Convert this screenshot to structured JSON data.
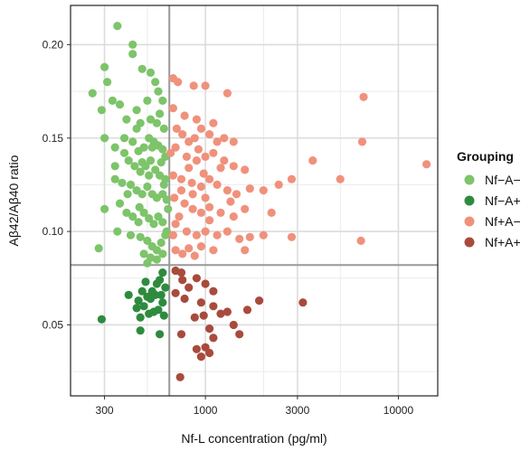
{
  "chart_data": {
    "type": "scatter",
    "xlabel": "Nf-L concentration (pg/ml)",
    "ylabel": "Aβ42/Aβ40 ratio",
    "x_scale": "log",
    "xlim": [
      200,
      16000
    ],
    "ylim": [
      0.012,
      0.221
    ],
    "x_ticks": [
      300,
      1000,
      3000,
      10000
    ],
    "x_tick_labels": [
      "300",
      "1000",
      "3000",
      "10000"
    ],
    "y_ticks": [
      0.05,
      0.1,
      0.15,
      0.2
    ],
    "y_tick_labels": [
      "0.05",
      "0.10",
      "0.15",
      "0.20"
    ],
    "grid": true,
    "reference_lines": {
      "x": 650,
      "y": 0.082
    },
    "legend": {
      "title": "Grouping",
      "position": "right"
    },
    "series": [
      {
        "name": "Nf−A−",
        "color": "#7dc46a",
        "points": [
          [
            350,
            0.21
          ],
          [
            420,
            0.2
          ],
          [
            420,
            0.195
          ],
          [
            300,
            0.188
          ],
          [
            310,
            0.18
          ],
          [
            260,
            0.174
          ],
          [
            330,
            0.17
          ],
          [
            360,
            0.168
          ],
          [
            290,
            0.165
          ],
          [
            470,
            0.187
          ],
          [
            520,
            0.185
          ],
          [
            550,
            0.18
          ],
          [
            570,
            0.175
          ],
          [
            600,
            0.17
          ],
          [
            580,
            0.163
          ],
          [
            500,
            0.17
          ],
          [
            440,
            0.165
          ],
          [
            390,
            0.16
          ],
          [
            460,
            0.158
          ],
          [
            520,
            0.16
          ],
          [
            560,
            0.158
          ],
          [
            610,
            0.155
          ],
          [
            300,
            0.15
          ],
          [
            340,
            0.145
          ],
          [
            380,
            0.15
          ],
          [
            420,
            0.148
          ],
          [
            450,
            0.143
          ],
          [
            480,
            0.145
          ],
          [
            510,
            0.15
          ],
          [
            540,
            0.148
          ],
          [
            570,
            0.146
          ],
          [
            600,
            0.144
          ],
          [
            620,
            0.14
          ],
          [
            400,
            0.138
          ],
          [
            430,
            0.135
          ],
          [
            460,
            0.132
          ],
          [
            490,
            0.135
          ],
          [
            520,
            0.138
          ],
          [
            550,
            0.133
          ],
          [
            580,
            0.13
          ],
          [
            620,
            0.128
          ],
          [
            340,
            0.128
          ],
          [
            370,
            0.126
          ],
          [
            410,
            0.125
          ],
          [
            440,
            0.122
          ],
          [
            470,
            0.12
          ],
          [
            500,
            0.124
          ],
          [
            530,
            0.12
          ],
          [
            560,
            0.118
          ],
          [
            600,
            0.12
          ],
          [
            630,
            0.117
          ],
          [
            300,
            0.112
          ],
          [
            360,
            0.115
          ],
          [
            390,
            0.11
          ],
          [
            420,
            0.108
          ],
          [
            450,
            0.105
          ],
          [
            480,
            0.11
          ],
          [
            510,
            0.107
          ],
          [
            540,
            0.104
          ],
          [
            570,
            0.108
          ],
          [
            600,
            0.105
          ],
          [
            630,
            0.1
          ],
          [
            280,
            0.091
          ],
          [
            350,
            0.1
          ],
          [
            410,
            0.098
          ],
          [
            460,
            0.097
          ],
          [
            500,
            0.095
          ],
          [
            530,
            0.092
          ],
          [
            560,
            0.09
          ],
          [
            590,
            0.094
          ],
          [
            620,
            0.098
          ],
          [
            480,
            0.088
          ],
          [
            520,
            0.086
          ],
          [
            560,
            0.085
          ],
          [
            500,
            0.083
          ],
          [
            600,
            0.088
          ],
          [
            340,
            0.135
          ],
          [
            380,
            0.142
          ],
          [
            440,
            0.155
          ],
          [
            530,
            0.145
          ],
          [
            470,
            0.137
          ],
          [
            510,
            0.13
          ],
          [
            590,
            0.137
          ],
          [
            610,
            0.125
          ],
          [
            640,
            0.112
          ],
          [
            455,
            0.113
          ],
          [
            395,
            0.12
          ]
        ]
      },
      {
        "name": "Nf−A+",
        "color": "#2e8b3e",
        "points": [
          [
            290,
            0.053
          ],
          [
            400,
            0.066
          ],
          [
            450,
            0.063
          ],
          [
            440,
            0.059
          ],
          [
            480,
            0.06
          ],
          [
            510,
            0.056
          ],
          [
            540,
            0.057
          ],
          [
            570,
            0.058
          ],
          [
            600,
            0.062
          ],
          [
            620,
            0.07
          ],
          [
            600,
            0.078
          ],
          [
            580,
            0.074
          ],
          [
            560,
            0.072
          ],
          [
            530,
            0.068
          ],
          [
            500,
            0.065
          ],
          [
            470,
            0.068
          ],
          [
            460,
            0.047
          ],
          [
            580,
            0.045
          ],
          [
            520,
            0.064
          ],
          [
            550,
            0.066
          ],
          [
            610,
            0.055
          ],
          [
            490,
            0.073
          ],
          [
            460,
            0.054
          ],
          [
            590,
            0.066
          ]
        ]
      },
      {
        "name": "Nf+A−",
        "color": "#f0917c",
        "points": [
          [
            680,
            0.182
          ],
          [
            720,
            0.18
          ],
          [
            870,
            0.178
          ],
          [
            1000,
            0.178
          ],
          [
            1300,
            0.174
          ],
          [
            680,
            0.166
          ],
          [
            780,
            0.162
          ],
          [
            900,
            0.16
          ],
          [
            1100,
            0.158
          ],
          [
            710,
            0.155
          ],
          [
            760,
            0.152
          ],
          [
            820,
            0.148
          ],
          [
            880,
            0.15
          ],
          [
            950,
            0.155
          ],
          [
            1050,
            0.152
          ],
          [
            1150,
            0.148
          ],
          [
            1250,
            0.15
          ],
          [
            1400,
            0.148
          ],
          [
            700,
            0.145
          ],
          [
            800,
            0.14
          ],
          [
            900,
            0.138
          ],
          [
            1000,
            0.14
          ],
          [
            1100,
            0.142
          ],
          [
            1250,
            0.138
          ],
          [
            1400,
            0.135
          ],
          [
            1600,
            0.133
          ],
          [
            680,
            0.13
          ],
          [
            750,
            0.128
          ],
          [
            850,
            0.126
          ],
          [
            950,
            0.124
          ],
          [
            1050,
            0.128
          ],
          [
            1150,
            0.125
          ],
          [
            1300,
            0.122
          ],
          [
            1450,
            0.12
          ],
          [
            1700,
            0.123
          ],
          [
            2000,
            0.122
          ],
          [
            2400,
            0.125
          ],
          [
            2800,
            0.128
          ],
          [
            3600,
            0.138
          ],
          [
            5000,
            0.128
          ],
          [
            6500,
            0.148
          ],
          [
            6600,
            0.172
          ],
          [
            14000,
            0.136
          ],
          [
            690,
            0.118
          ],
          [
            780,
            0.115
          ],
          [
            860,
            0.112
          ],
          [
            950,
            0.11
          ],
          [
            1050,
            0.113
          ],
          [
            1200,
            0.11
          ],
          [
            1400,
            0.108
          ],
          [
            1600,
            0.112
          ],
          [
            700,
            0.104
          ],
          [
            800,
            0.1
          ],
          [
            900,
            0.098
          ],
          [
            1000,
            0.1
          ],
          [
            1150,
            0.098
          ],
          [
            1300,
            0.1
          ],
          [
            1500,
            0.096
          ],
          [
            2000,
            0.098
          ],
          [
            2800,
            0.097
          ],
          [
            6400,
            0.095
          ],
          [
            700,
            0.09
          ],
          [
            760,
            0.088
          ],
          [
            820,
            0.091
          ],
          [
            880,
            0.087
          ],
          [
            950,
            0.092
          ],
          [
            1100,
            0.09
          ],
          [
            1600,
            0.09
          ],
          [
            2200,
            0.11
          ],
          [
            1700,
            0.097
          ],
          [
            750,
            0.122
          ],
          [
            660,
            0.142
          ],
          [
            820,
            0.134
          ],
          [
            1000,
            0.118
          ],
          [
            1200,
            0.134
          ],
          [
            920,
            0.144
          ],
          [
            730,
            0.108
          ],
          [
            860,
            0.12
          ],
          [
            1050,
            0.106
          ],
          [
            680,
            0.098
          ],
          [
            1350,
            0.116
          ],
          [
            980,
            0.131
          ]
        ]
      },
      {
        "name": "Nf+A+",
        "color": "#a84b3c",
        "points": [
          [
            700,
            0.079
          ],
          [
            750,
            0.078
          ],
          [
            760,
            0.074
          ],
          [
            820,
            0.07
          ],
          [
            900,
            0.075
          ],
          [
            1000,
            0.072
          ],
          [
            1100,
            0.068
          ],
          [
            700,
            0.067
          ],
          [
            780,
            0.064
          ],
          [
            950,
            0.062
          ],
          [
            1100,
            0.06
          ],
          [
            1200,
            0.056
          ],
          [
            1300,
            0.057
          ],
          [
            1650,
            0.058
          ],
          [
            1900,
            0.063
          ],
          [
            3200,
            0.062
          ],
          [
            1400,
            0.05
          ],
          [
            1500,
            0.045
          ],
          [
            1050,
            0.048
          ],
          [
            1100,
            0.043
          ],
          [
            900,
            0.037
          ],
          [
            950,
            0.033
          ],
          [
            1000,
            0.038
          ],
          [
            1050,
            0.035
          ],
          [
            750,
            0.045
          ],
          [
            740,
            0.022
          ],
          [
            980,
            0.055
          ],
          [
            880,
            0.054
          ]
        ]
      }
    ]
  }
}
